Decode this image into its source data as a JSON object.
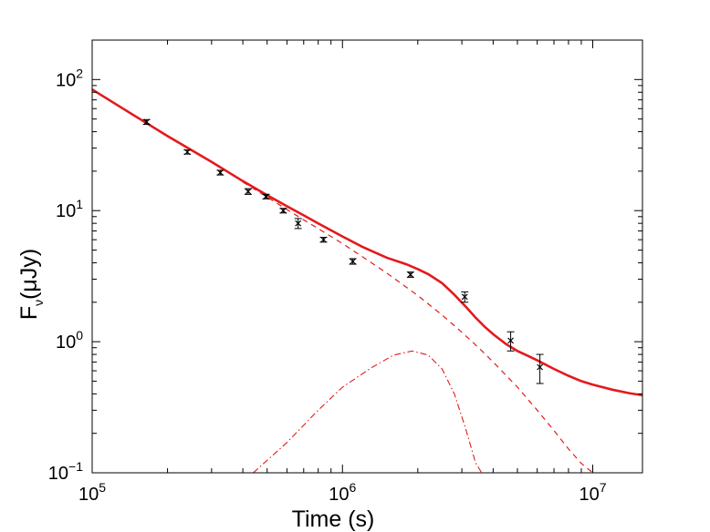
{
  "chart_data": {
    "type": "scatter",
    "xlabel": "Time (s)",
    "ylabel_main": "F",
    "ylabel_sub": "ν",
    "ylabel_rest": "(μJy)",
    "xscale": "log",
    "yscale": "log",
    "xlim": [
      100000,
      15800000
    ],
    "ylim": [
      0.1,
      200
    ],
    "grid": false,
    "colors": {
      "model": "#e31a1c",
      "data": "#000000"
    },
    "x_ticks": [
      {
        "value": 100000,
        "base": "10",
        "exp": "5"
      },
      {
        "value": 1000000,
        "base": "10",
        "exp": "6"
      },
      {
        "value": 10000000,
        "base": "10",
        "exp": "7"
      }
    ],
    "y_ticks": [
      {
        "value": 0.1,
        "base": "10",
        "exp": "−1"
      },
      {
        "value": 1,
        "base": "10",
        "exp": "0"
      },
      {
        "value": 10,
        "base": "10",
        "exp": "1"
      },
      {
        "value": 100,
        "base": "10",
        "exp": "2"
      }
    ],
    "data_points": [
      {
        "x": 165000,
        "y": 47.5,
        "err": 2.0
      },
      {
        "x": 240000,
        "y": 28.0,
        "err": 1.0
      },
      {
        "x": 325000,
        "y": 19.5,
        "err": 0.8
      },
      {
        "x": 420000,
        "y": 14.0,
        "err": 0.7
      },
      {
        "x": 495000,
        "y": 12.8,
        "err": 0.5
      },
      {
        "x": 580000,
        "y": 10.0,
        "err": 0.4
      },
      {
        "x": 665000,
        "y": 8.0,
        "err": 0.7
      },
      {
        "x": 840000,
        "y": 6.0,
        "err": 0.25
      },
      {
        "x": 1100000,
        "y": 4.1,
        "err": 0.2
      },
      {
        "x": 1870000,
        "y": 3.25,
        "err": 0.15
      },
      {
        "x": 3080000,
        "y": 2.2,
        "err": 0.2
      },
      {
        "x": 4700000,
        "y": 1.02,
        "err": 0.17
      },
      {
        "x": 6150000,
        "y": 0.64,
        "err": 0.16
      }
    ],
    "series": [
      {
        "style": "solid",
        "x": [
          100000,
          150000,
          200000,
          300000,
          400000,
          500000,
          600000,
          700000,
          800000,
          1000000,
          1200000,
          1500000,
          1800000,
          2000000,
          2200000,
          2500000,
          2800000,
          3100000,
          3400000,
          3700000,
          4000000,
          4500000,
          5000000,
          5500000,
          6000000,
          7000000,
          8000000,
          9000000,
          10000000,
          12000000,
          14000000,
          15800000
        ],
        "y": [
          84,
          52,
          37,
          23.5,
          16.8,
          13.1,
          10.8,
          9.2,
          8.0,
          6.35,
          5.3,
          4.38,
          3.9,
          3.58,
          3.28,
          2.8,
          2.28,
          1.86,
          1.53,
          1.3,
          1.14,
          0.96,
          0.85,
          0.78,
          0.72,
          0.62,
          0.55,
          0.5,
          0.47,
          0.43,
          0.405,
          0.39
        ]
      },
      {
        "style": "dashed",
        "x": [
          400000,
          500000,
          600000,
          700000,
          800000,
          1000000,
          1200000,
          1500000,
          2000000,
          2500000,
          3000000,
          3500000,
          4000000,
          5000000,
          6000000,
          7000000,
          8000000,
          9000000,
          10000000
        ],
        "y": [
          16.5,
          12.7,
          10.2,
          8.5,
          7.3,
          5.6,
          4.45,
          3.35,
          2.25,
          1.6,
          1.18,
          0.9,
          0.7,
          0.45,
          0.3,
          0.21,
          0.152,
          0.118,
          0.1
        ]
      },
      {
        "style": "dashdot",
        "x": [
          440000,
          600000,
          800000,
          1000000,
          1300000,
          1600000,
          1900000,
          2200000,
          2500000,
          2800000,
          3100000,
          3400000,
          3600000
        ],
        "y": [
          0.1,
          0.17,
          0.3,
          0.45,
          0.63,
          0.79,
          0.85,
          0.79,
          0.62,
          0.4,
          0.22,
          0.12,
          0.1
        ]
      }
    ]
  }
}
